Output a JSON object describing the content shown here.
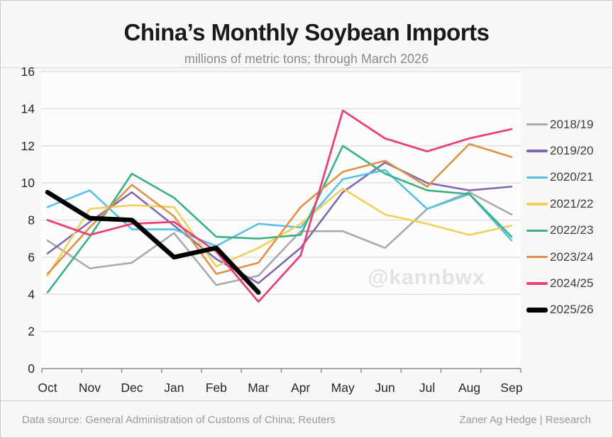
{
  "header": {
    "title": "China’s Monthly Soybean Imports",
    "subtitle": "millions of metric tons; through March 2026"
  },
  "watermark": {
    "text": "@kannbwx"
  },
  "footer": {
    "left": "Data source: General Administration of Customs of China; Reuters",
    "right": "Zaner Ag Hedge | Research"
  },
  "chart_data": {
    "type": "line",
    "title": "China’s Monthly Soybean Imports",
    "subtitle": "millions of metric tons; through March 2026",
    "categories": [
      "Oct",
      "Nov",
      "Dec",
      "Jan",
      "Feb",
      "Mar",
      "Apr",
      "May",
      "Jun",
      "Jul",
      "Aug",
      "Sep"
    ],
    "ylim": [
      0,
      16
    ],
    "ytick_step": 2,
    "grid": true,
    "legend_position": "right",
    "series": [
      {
        "name": "2018/19",
        "color": "#a9a9a9",
        "line_width": 2.6,
        "values": [
          6.9,
          5.4,
          5.7,
          7.3,
          4.5,
          5.0,
          7.4,
          7.4,
          6.5,
          8.6,
          9.5,
          8.3
        ]
      },
      {
        "name": "2019/20",
        "color": "#7f68b0",
        "line_width": 2.6,
        "values": [
          6.2,
          7.9,
          9.5,
          7.7,
          5.9,
          4.6,
          6.5,
          9.5,
          11.1,
          10.0,
          9.6,
          9.8
        ]
      },
      {
        "name": "2020/21",
        "color": "#56c0e8",
        "line_width": 2.6,
        "values": [
          8.7,
          9.6,
          7.5,
          7.5,
          6.6,
          7.8,
          7.6,
          10.2,
          10.7,
          8.6,
          9.4,
          6.9
        ]
      },
      {
        "name": "2021/22",
        "color": "#f2cf5c",
        "line_width": 2.6,
        "values": [
          5.0,
          8.6,
          8.8,
          8.7,
          5.5,
          6.5,
          7.8,
          9.7,
          8.3,
          7.8,
          7.2,
          7.7
        ]
      },
      {
        "name": "2022/23",
        "color": "#39b184",
        "line_width": 2.6,
        "values": [
          4.1,
          7.1,
          10.5,
          9.2,
          7.1,
          7.0,
          7.2,
          12.0,
          10.5,
          9.6,
          9.4,
          7.1
        ]
      },
      {
        "name": "2023/24",
        "color": "#df9049",
        "line_width": 2.6,
        "values": [
          5.1,
          7.6,
          9.9,
          8.2,
          5.1,
          5.7,
          8.7,
          10.6,
          11.2,
          9.8,
          12.1,
          11.4
        ]
      },
      {
        "name": "2024/25",
        "color": "#e84178",
        "line_width": 2.8,
        "values": [
          8.0,
          7.2,
          7.8,
          7.9,
          6.3,
          3.6,
          6.1,
          13.9,
          12.4,
          11.7,
          12.4,
          12.9
        ]
      },
      {
        "name": "2025/26",
        "color": "#000000",
        "line_width": 6.5,
        "values": [
          9.5,
          8.1,
          8.0,
          6.0,
          6.5,
          4.1,
          null,
          null,
          null,
          null,
          null,
          null
        ]
      }
    ]
  }
}
